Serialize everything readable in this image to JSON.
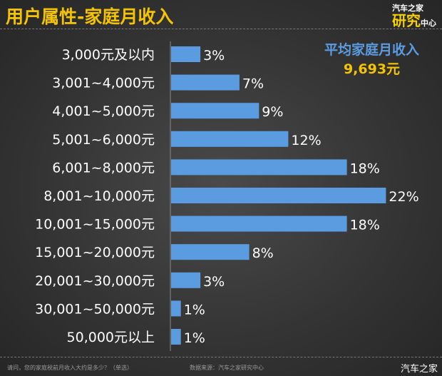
{
  "header": {
    "title": "用户属性-家庭月收入",
    "logo_line1": "汽车之家",
    "logo_line2": "研究",
    "logo_line3": "中心"
  },
  "average": {
    "label": "平均家庭月收入",
    "value": "9,693元"
  },
  "chart_data": {
    "type": "bar",
    "orientation": "horizontal",
    "categories": [
      "3,000元及以内",
      "3,001~4,000元",
      "4,001~5,000元",
      "5,001~6,000元",
      "6,001~8,000元",
      "8,001~10,000元",
      "10,001~15,000元",
      "15,001~20,000元",
      "20,001~30,000元",
      "30,001~50,000元",
      "50,000元以上"
    ],
    "values": [
      3,
      7,
      9,
      12,
      18,
      22,
      18,
      8,
      3,
      1,
      1
    ],
    "data_labels": [
      "3%",
      "7%",
      "9%",
      "12%",
      "18%",
      "22%",
      "18%",
      "8%",
      "3%",
      "1%",
      "1%"
    ],
    "unit": "%",
    "bar_color": "#5b9be0",
    "grid": false
  },
  "footer": {
    "question": "请问，您的家庭税前月收入大约是多少？（单选）",
    "source": "数据来源：汽车之家研究中心",
    "brand": "汽车之家"
  }
}
